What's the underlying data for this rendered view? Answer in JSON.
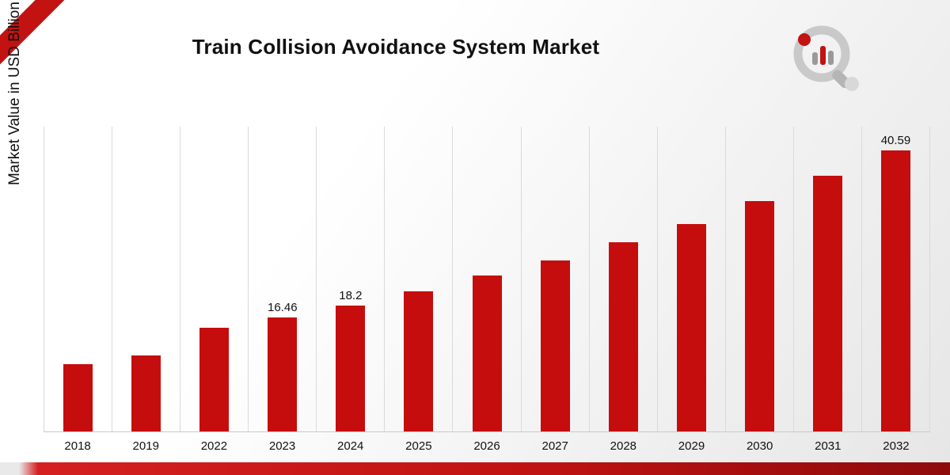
{
  "title": "Train Collision Avoidance System Market",
  "chart_data": {
    "type": "bar",
    "title": "Train Collision Avoidance System Market",
    "xlabel": "",
    "ylabel": "Market Value in USD Billion",
    "categories": [
      "2018",
      "2019",
      "2022",
      "2023",
      "2024",
      "2025",
      "2026",
      "2027",
      "2028",
      "2029",
      "2030",
      "2031",
      "2032"
    ],
    "values": [
      9.7,
      11.0,
      15.0,
      16.46,
      18.2,
      20.2,
      22.5,
      24.7,
      27.3,
      30.0,
      33.3,
      36.9,
      40.59
    ],
    "data_labels": [
      "",
      "",
      "",
      "16.46",
      "18.2",
      "",
      "",
      "",
      "",
      "",
      "",
      "",
      "40.59"
    ],
    "ylim": [
      0,
      44
    ],
    "grid": "vertical",
    "legend": "none",
    "bar_color": "#c50d0d"
  },
  "decor": {
    "ribbon_color": "#c21212",
    "band_colors": [
      "#d42020",
      "#8e0b0b"
    ],
    "logo_name": "market-research-future-logo"
  }
}
